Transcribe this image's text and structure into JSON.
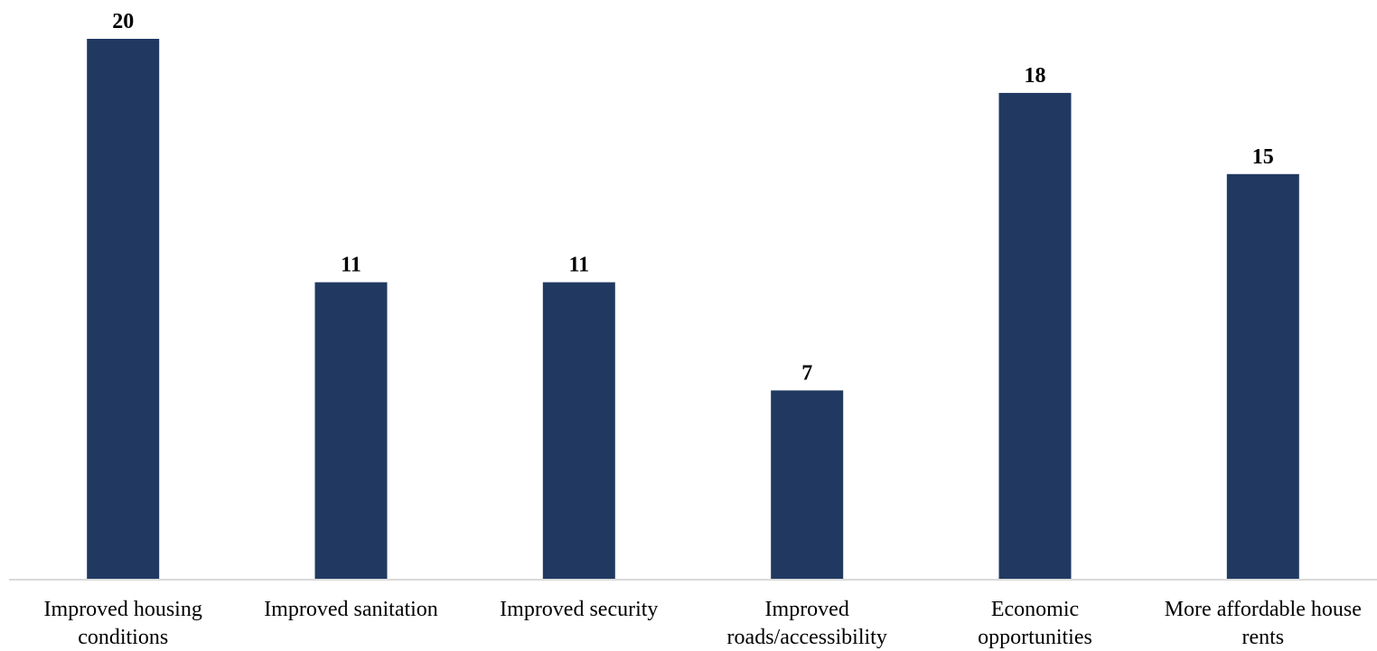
{
  "chart_data": {
    "type": "bar",
    "title": "",
    "xlabel": "",
    "ylabel": "",
    "categories": [
      [
        "Improved housing",
        "conditions"
      ],
      [
        "Improved sanitation"
      ],
      [
        "Improved security"
      ],
      [
        "Improved",
        "roads/accessibility"
      ],
      [
        "Economic",
        "opportunities"
      ],
      [
        "More affordable house",
        "rents"
      ]
    ],
    "values": [
      20,
      11,
      11,
      7,
      18,
      15
    ],
    "ylim": [
      0,
      20
    ],
    "grid": false,
    "legend": "none",
    "data_labels": true,
    "colors": {
      "bar": "#213961",
      "axis": "#d9d9d9",
      "text": "#000000"
    }
  }
}
